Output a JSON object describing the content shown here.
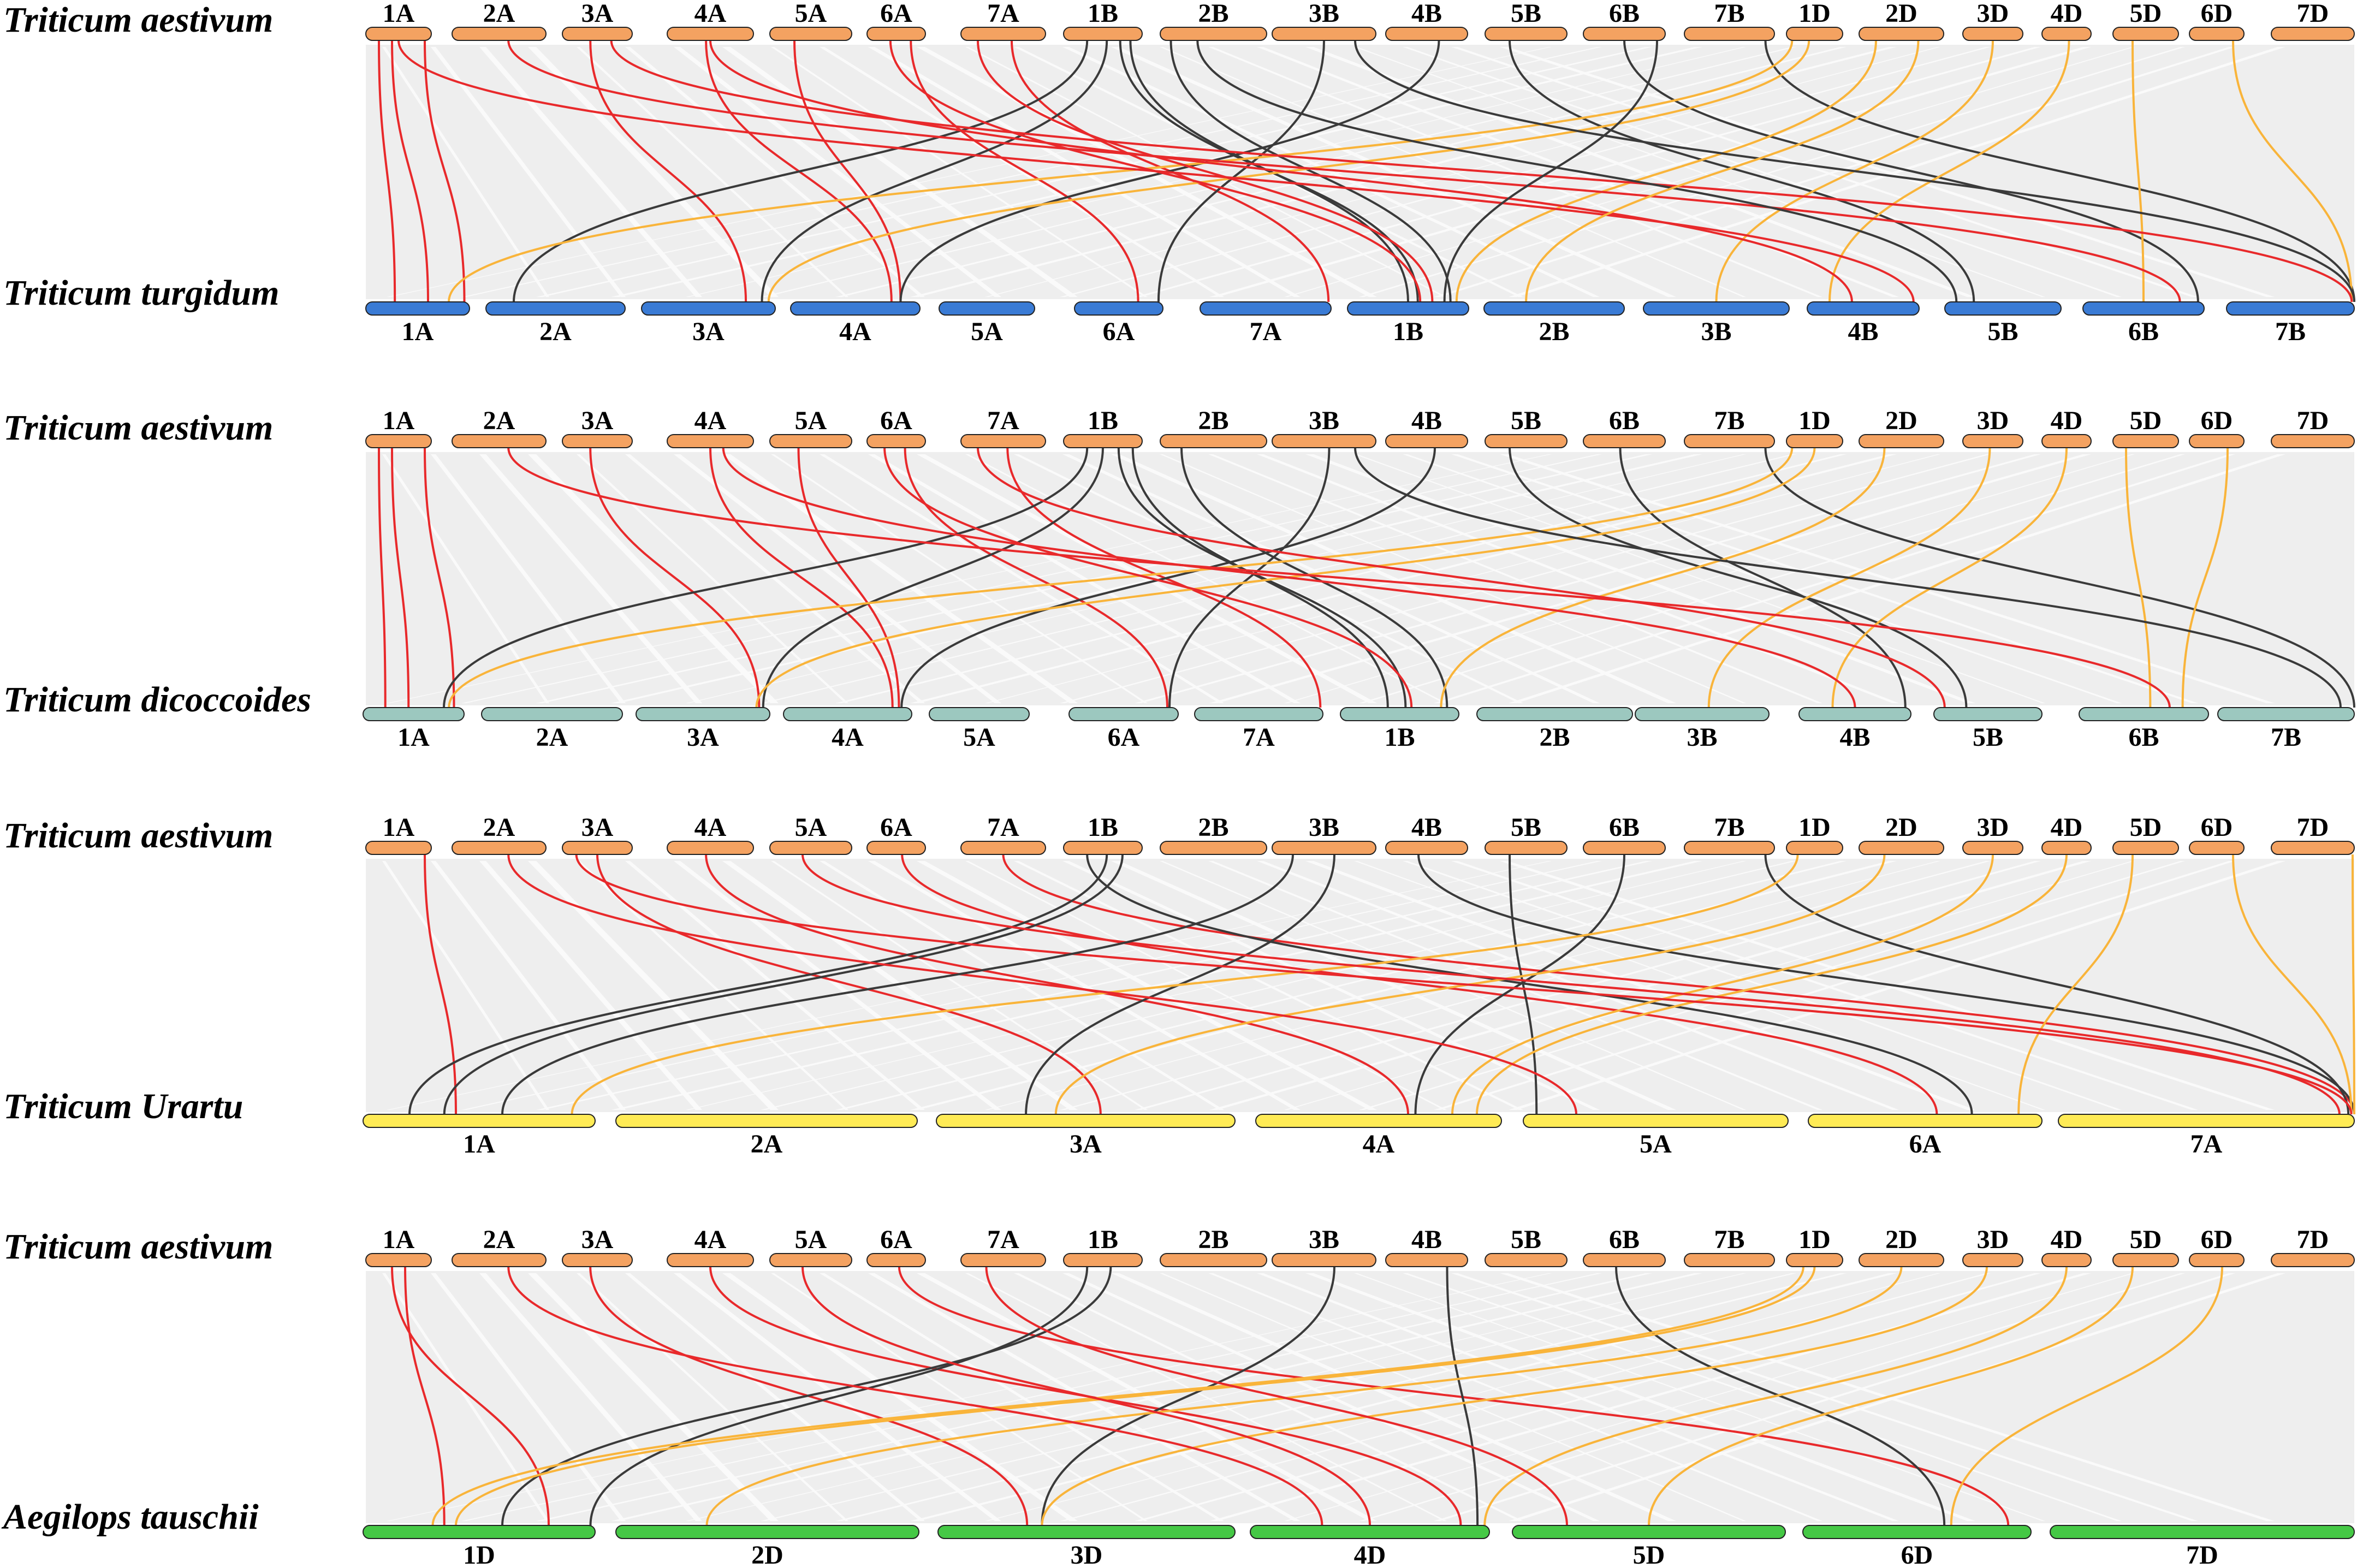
{
  "colors": {
    "aestivum": "#F4A261",
    "turgidum": "#3A7BD5",
    "dicoccoides": "#9CC8BF",
    "urartu": "#FFEB55",
    "tauschii": "#45C845",
    "a_links": "#E8292B",
    "b_links": "#3A3A3A",
    "d_links": "#F9B43A",
    "panel_bg": "#EEEEEE"
  },
  "panels": [
    {
      "top_species": "Triticum aestivum",
      "top_chromosomes": [
        "1A",
        "2A",
        "3A",
        "4A",
        "5A",
        "6A",
        "7A",
        "1B",
        "2B",
        "3B",
        "4B",
        "5B",
        "6B",
        "7B",
        "1D",
        "2D",
        "3D",
        "4D",
        "5D",
        "6D",
        "7D"
      ],
      "bottom_species": "Triticum turgidum",
      "bottom_chromosomes": [
        "1A",
        "2A",
        "3A",
        "4A",
        "5A",
        "6A",
        "7A",
        "1B",
        "2B",
        "3B",
        "4B",
        "5B",
        "6B",
        "7B"
      ],
      "bottom_color_key": "turgidum"
    },
    {
      "top_species": "Triticum aestivum",
      "top_chromosomes": [
        "1A",
        "2A",
        "3A",
        "4A",
        "5A",
        "6A",
        "7A",
        "1B",
        "2B",
        "3B",
        "4B",
        "5B",
        "6B",
        "7B",
        "1D",
        "2D",
        "3D",
        "4D",
        "5D",
        "6D",
        "7D"
      ],
      "bottom_species": "Triticum dicoccoides",
      "bottom_chromosomes": [
        "1A",
        "2A",
        "3A",
        "4A",
        "5A",
        "6A",
        "7A",
        "1B",
        "2B",
        "3B",
        "4B",
        "5B",
        "6B",
        "7B"
      ],
      "bottom_color_key": "dicoccoides"
    },
    {
      "top_species": "Triticum aestivum",
      "top_chromosomes": [
        "1A",
        "2A",
        "3A",
        "4A",
        "5A",
        "6A",
        "7A",
        "1B",
        "2B",
        "3B",
        "4B",
        "5B",
        "6B",
        "7B",
        "1D",
        "2D",
        "3D",
        "4D",
        "5D",
        "6D",
        "7D"
      ],
      "bottom_species": "Triticum Urartu",
      "bottom_chromosomes": [
        "1A",
        "2A",
        "3A",
        "4A",
        "5A",
        "6A",
        "7A"
      ],
      "bottom_color_key": "urartu"
    },
    {
      "top_species": "Triticum aestivum",
      "top_chromosomes": [
        "1A",
        "2A",
        "3A",
        "4A",
        "5A",
        "6A",
        "7A",
        "1B",
        "2B",
        "3B",
        "4B",
        "5B",
        "6B",
        "7B",
        "1D",
        "2D",
        "3D",
        "4D",
        "5D",
        "6D",
        "7D"
      ],
      "bottom_species": "Aegilops tauschii",
      "bottom_chromosomes": [
        "1D",
        "2D",
        "3D",
        "4D",
        "5D",
        "6D",
        "7D"
      ],
      "bottom_color_key": "tauschii"
    }
  ]
}
